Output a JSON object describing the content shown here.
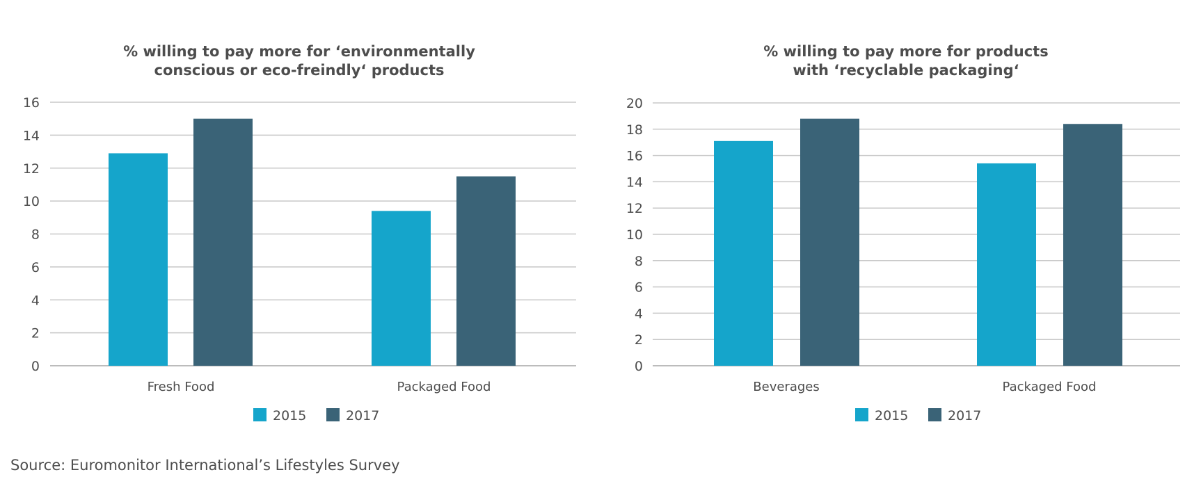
{
  "chart_data": [
    {
      "type": "bar",
      "title_lines": [
        "% willing to pay more for ‘environmentally",
        "conscious or eco-freindly‘ products"
      ],
      "categories": [
        "Fresh Food",
        "Packaged Food"
      ],
      "series": [
        {
          "name": "2015",
          "values": [
            12.9,
            9.4
          ],
          "color": "#15a5cb"
        },
        {
          "name": "2017",
          "values": [
            15.0,
            11.5
          ],
          "color": "#3a6377"
        }
      ],
      "ylim": [
        0,
        16
      ],
      "yticks": [
        0,
        2,
        4,
        6,
        8,
        10,
        12,
        14,
        16
      ],
      "grid": true,
      "legend_position": "bottom-center"
    },
    {
      "type": "bar",
      "title_lines": [
        "% willing to pay more for products",
        "with ‘recyclable packaging‘"
      ],
      "categories": [
        "Beverages",
        "Packaged Food"
      ],
      "series": [
        {
          "name": "2015",
          "values": [
            17.1,
            15.4
          ],
          "color": "#15a5cb"
        },
        {
          "name": "2017",
          "values": [
            18.8,
            18.4
          ],
          "color": "#3a6377"
        }
      ],
      "ylim": [
        0,
        20
      ],
      "yticks": [
        0,
        2,
        4,
        6,
        8,
        10,
        12,
        14,
        16,
        18,
        20
      ],
      "grid": true,
      "legend_position": "bottom-center"
    }
  ],
  "source": "Source: Euromonitor International’s Lifestyles Survey"
}
